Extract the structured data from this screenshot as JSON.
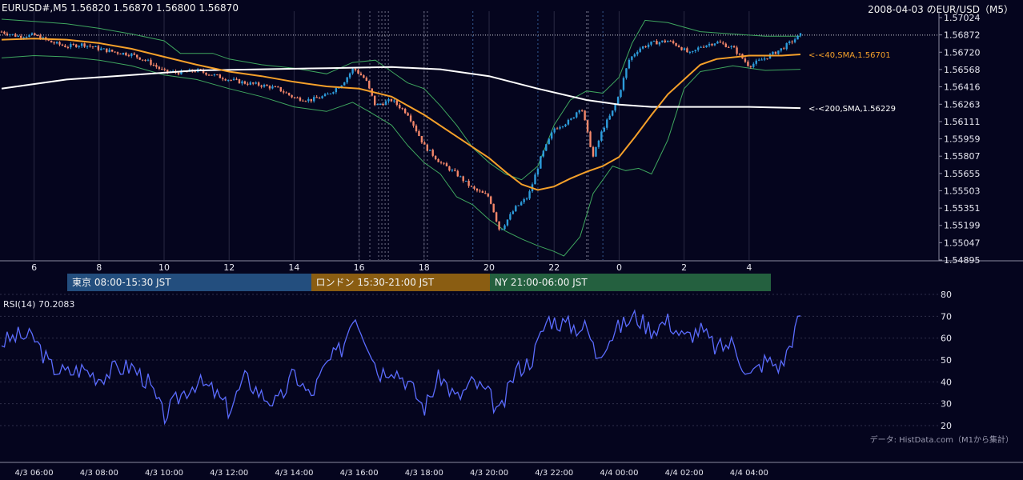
{
  "header": {
    "symbol_ohlc": "EURUSD#,M5 1.56820 1.56870 1.56800 1.56870",
    "title": "2008-04-03 のEUR/USD（M5）"
  },
  "colors": {
    "background": "#05051e",
    "candle_up": "#2d9cdb",
    "candle_down": "#f4876a",
    "sma40": "#f5a02a",
    "sma200": "#ffffff",
    "bollinger": "#3fa65f",
    "rsi_line": "#5b6cff",
    "session_tokyo": "#234e7e",
    "session_london": "#8a5d12",
    "session_ny": "#24603f"
  },
  "chart_data": [
    {
      "type": "candlestick",
      "title": "2008-04-03 のEUR/USD（M5）",
      "instrument": "EURUSD#,M5",
      "ylim": [
        1.54895,
        1.57024
      ],
      "y_ticks": [
        "1.57024",
        "1.56872",
        "1.56720",
        "1.56568",
        "1.56416",
        "1.56263",
        "1.56111",
        "1.55959",
        "1.55807",
        "1.55655",
        "1.55503",
        "1.55351",
        "1.55199",
        "1.55047",
        "1.54895"
      ],
      "x_ticks": [
        "6",
        "8",
        "10",
        "12",
        "14",
        "16",
        "18",
        "20",
        "22",
        "0",
        "2",
        "4"
      ],
      "x_tick_hours": [
        6,
        8,
        10,
        12,
        14,
        16,
        18,
        20,
        22,
        24,
        26,
        28
      ],
      "current_price": 1.5687,
      "indicators": [
        {
          "label": "<-<40,SMA,1.56701",
          "value": 1.56701,
          "color": "#f5a02a"
        },
        {
          "label": "<-<200,SMA,1.56229",
          "value": 1.56229,
          "color": "#ffffff"
        }
      ],
      "close_path": [
        [
          5.0,
          1.569
        ],
        [
          5.5,
          1.5686
        ],
        [
          6.0,
          1.5687
        ],
        [
          6.5,
          1.5681
        ],
        [
          7.0,
          1.5677
        ],
        [
          7.5,
          1.5679
        ],
        [
          8.0,
          1.5675
        ],
        [
          8.5,
          1.5672
        ],
        [
          9.0,
          1.567
        ],
        [
          9.5,
          1.5664
        ],
        [
          10.0,
          1.5655
        ],
        [
          10.5,
          1.5654
        ],
        [
          11.0,
          1.5656
        ],
        [
          11.5,
          1.5652
        ],
        [
          12.0,
          1.5648
        ],
        [
          12.5,
          1.5645
        ],
        [
          13.0,
          1.5643
        ],
        [
          13.5,
          1.564
        ],
        [
          14.0,
          1.5632
        ],
        [
          14.5,
          1.563
        ],
        [
          15.0,
          1.5634
        ],
        [
          15.5,
          1.5645
        ],
        [
          15.83,
          1.5658
        ],
        [
          16.2,
          1.5648
        ],
        [
          16.5,
          1.5625
        ],
        [
          17.0,
          1.563
        ],
        [
          17.5,
          1.5618
        ],
        [
          18.0,
          1.559
        ],
        [
          18.5,
          1.5575
        ],
        [
          19.0,
          1.5565
        ],
        [
          19.5,
          1.5552
        ],
        [
          20.0,
          1.5545
        ],
        [
          20.33,
          1.5515
        ],
        [
          20.8,
          1.5535
        ],
        [
          21.2,
          1.5545
        ],
        [
          21.6,
          1.558
        ],
        [
          22.0,
          1.5605
        ],
        [
          22.5,
          1.5612
        ],
        [
          22.83,
          1.5625
        ],
        [
          23.2,
          1.558
        ],
        [
          23.5,
          1.5605
        ],
        [
          23.8,
          1.562
        ],
        [
          24.0,
          1.5635
        ],
        [
          24.3,
          1.5665
        ],
        [
          24.6,
          1.5675
        ],
        [
          25.0,
          1.568
        ],
        [
          25.5,
          1.5682
        ],
        [
          25.8,
          1.5678
        ],
        [
          26.2,
          1.567
        ],
        [
          26.5,
          1.5677
        ],
        [
          27.0,
          1.5681
        ],
        [
          27.5,
          1.5676
        ],
        [
          28.0,
          1.566
        ],
        [
          28.5,
          1.5667
        ],
        [
          29.0,
          1.5675
        ],
        [
          29.58,
          1.5687
        ]
      ],
      "sma40_path": [
        [
          5.0,
          1.5683
        ],
        [
          6.0,
          1.5684
        ],
        [
          7.0,
          1.5683
        ],
        [
          8.0,
          1.568
        ],
        [
          9.0,
          1.5675
        ],
        [
          10.0,
          1.5668
        ],
        [
          11.0,
          1.5661
        ],
        [
          12.0,
          1.5655
        ],
        [
          13.0,
          1.5651
        ],
        [
          14.0,
          1.5646
        ],
        [
          15.0,
          1.5642
        ],
        [
          16.0,
          1.564
        ],
        [
          17.0,
          1.5633
        ],
        [
          18.0,
          1.5617
        ],
        [
          19.0,
          1.5598
        ],
        [
          20.0,
          1.5579
        ],
        [
          20.5,
          1.5567
        ],
        [
          21.0,
          1.5556
        ],
        [
          21.5,
          1.5551
        ],
        [
          22.0,
          1.5554
        ],
        [
          22.5,
          1.5561
        ],
        [
          23.0,
          1.5567
        ],
        [
          23.5,
          1.5572
        ],
        [
          24.0,
          1.558
        ],
        [
          24.5,
          1.5598
        ],
        [
          25.0,
          1.5617
        ],
        [
          25.5,
          1.5635
        ],
        [
          26.0,
          1.5648
        ],
        [
          26.5,
          1.5661
        ],
        [
          27.0,
          1.5666
        ],
        [
          28.0,
          1.5669
        ],
        [
          29.0,
          1.5669
        ],
        [
          29.58,
          1.56701
        ]
      ],
      "sma200_path": [
        [
          5.0,
          1.564
        ],
        [
          7.0,
          1.5648
        ],
        [
          9.0,
          1.5652
        ],
        [
          11.0,
          1.5656
        ],
        [
          13.0,
          1.5657
        ],
        [
          15.0,
          1.5658
        ],
        [
          17.0,
          1.5659
        ],
        [
          18.5,
          1.5657
        ],
        [
          20.0,
          1.5651
        ],
        [
          21.5,
          1.564
        ],
        [
          23.0,
          1.563
        ],
        [
          24.0,
          1.5626
        ],
        [
          25.0,
          1.5624
        ],
        [
          26.5,
          1.5624
        ],
        [
          28.0,
          1.5624
        ],
        [
          29.58,
          1.56229
        ]
      ],
      "bollinger_upper": [
        [
          5.0,
          1.5701
        ],
        [
          6.0,
          1.5699
        ],
        [
          7.0,
          1.5697
        ],
        [
          8.0,
          1.5693
        ],
        [
          9.0,
          1.5688
        ],
        [
          10.0,
          1.5682
        ],
        [
          10.5,
          1.5671
        ],
        [
          11.5,
          1.5671
        ],
        [
          12.0,
          1.5666
        ],
        [
          13.0,
          1.5661
        ],
        [
          14.0,
          1.5658
        ],
        [
          15.0,
          1.5653
        ],
        [
          15.8,
          1.5663
        ],
        [
          16.5,
          1.5665
        ],
        [
          17.0,
          1.5655
        ],
        [
          17.5,
          1.5645
        ],
        [
          18.0,
          1.564
        ],
        [
          18.5,
          1.5625
        ],
        [
          19.0,
          1.5608
        ],
        [
          19.5,
          1.5588
        ],
        [
          20.0,
          1.5575
        ],
        [
          20.5,
          1.5565
        ],
        [
          21.0,
          1.556
        ],
        [
          21.5,
          1.5572
        ],
        [
          22.0,
          1.5608
        ],
        [
          22.5,
          1.563
        ],
        [
          23.0,
          1.5638
        ],
        [
          23.5,
          1.5636
        ],
        [
          24.0,
          1.565
        ],
        [
          24.4,
          1.568
        ],
        [
          24.8,
          1.57
        ],
        [
          25.5,
          1.5698
        ],
        [
          26.0,
          1.5694
        ],
        [
          26.5,
          1.569
        ],
        [
          27.5,
          1.5688
        ],
        [
          28.5,
          1.5686
        ],
        [
          29.58,
          1.5686
        ]
      ],
      "bollinger_lower": [
        [
          5.0,
          1.5667
        ],
        [
          6.0,
          1.5669
        ],
        [
          7.0,
          1.5668
        ],
        [
          8.0,
          1.5665
        ],
        [
          9.0,
          1.566
        ],
        [
          10.0,
          1.5652
        ],
        [
          11.0,
          1.5648
        ],
        [
          12.0,
          1.564
        ],
        [
          13.0,
          1.5633
        ],
        [
          14.0,
          1.5624
        ],
        [
          15.0,
          1.562
        ],
        [
          15.8,
          1.5628
        ],
        [
          16.3,
          1.562
        ],
        [
          17.0,
          1.5608
        ],
        [
          17.5,
          1.559
        ],
        [
          18.0,
          1.5575
        ],
        [
          18.5,
          1.5565
        ],
        [
          19.0,
          1.5545
        ],
        [
          19.5,
          1.5538
        ],
        [
          20.0,
          1.5525
        ],
        [
          20.5,
          1.5515
        ],
        [
          21.0,
          1.5508
        ],
        [
          21.5,
          1.5502
        ],
        [
          22.0,
          1.5497
        ],
        [
          22.3,
          1.5493
        ],
        [
          22.8,
          1.551
        ],
        [
          23.2,
          1.5548
        ],
        [
          23.8,
          1.5572
        ],
        [
          24.2,
          1.5568
        ],
        [
          24.6,
          1.557
        ],
        [
          25.0,
          1.5565
        ],
        [
          25.5,
          1.5595
        ],
        [
          26.0,
          1.564
        ],
        [
          26.5,
          1.5655
        ],
        [
          27.5,
          1.566
        ],
        [
          28.5,
          1.5656
        ],
        [
          29.58,
          1.5657
        ]
      ]
    },
    {
      "type": "line",
      "title": "RSI(14) 70.2083",
      "ylim": [
        20,
        80
      ],
      "y_ticks": [
        80,
        70,
        60,
        50,
        40,
        30,
        20
      ],
      "x_ticks": [
        "4/3 06:00",
        "4/3 08:00",
        "4/3 10:00",
        "4/3 12:00",
        "4/3 14:00",
        "4/3 16:00",
        "4/3 18:00",
        "4/3 20:00",
        "4/3 22:00",
        "4/4 00:00",
        "4/4 02:00",
        "4/4 04:00"
      ],
      "x_tick_hours": [
        6,
        8,
        10,
        12,
        14,
        16,
        18,
        20,
        22,
        24,
        26,
        28
      ],
      "series": [
        {
          "last_value": 70.2083,
          "points": [
            [
              5.0,
              58
            ],
            [
              5.5,
              61
            ],
            [
              6.0,
              60
            ],
            [
              6.5,
              47
            ],
            [
              7.0,
              44
            ],
            [
              7.5,
              46
            ],
            [
              8.0,
              42
            ],
            [
              8.5,
              46
            ],
            [
              9.0,
              47
            ],
            [
              9.5,
              40
            ],
            [
              10.0,
              24
            ],
            [
              10.5,
              34
            ],
            [
              11.0,
              40
            ],
            [
              11.5,
              36
            ],
            [
              12.0,
              27
            ],
            [
              12.5,
              42
            ],
            [
              13.0,
              34
            ],
            [
              13.5,
              30
            ],
            [
              14.0,
              44
            ],
            [
              14.5,
              33
            ],
            [
              15.0,
              48
            ],
            [
              15.5,
              56
            ],
            [
              15.83,
              72
            ],
            [
              16.3,
              57
            ],
            [
              16.6,
              44
            ],
            [
              17.0,
              47
            ],
            [
              17.5,
              40
            ],
            [
              18.0,
              28
            ],
            [
              18.5,
              43
            ],
            [
              19.0,
              32
            ],
            [
              19.5,
              40
            ],
            [
              20.0,
              34
            ],
            [
              20.33,
              25
            ],
            [
              20.8,
              45
            ],
            [
              21.3,
              50
            ],
            [
              21.8,
              69
            ],
            [
              22.2,
              67
            ],
            [
              22.7,
              65
            ],
            [
              23.0,
              65
            ],
            [
              23.3,
              52
            ],
            [
              23.7,
              60
            ],
            [
              24.0,
              65
            ],
            [
              24.5,
              70
            ],
            [
              25.0,
              64
            ],
            [
              25.5,
              68
            ],
            [
              26.0,
              60
            ],
            [
              26.5,
              64
            ],
            [
              27.0,
              55
            ],
            [
              27.5,
              58
            ],
            [
              28.0,
              42
            ],
            [
              28.5,
              50
            ],
            [
              29.0,
              47
            ],
            [
              29.58,
              70.2
            ]
          ]
        }
      ]
    }
  ],
  "sessions": [
    {
      "label": "東京 08:00-15:30 JST",
      "start_hour": 8.0,
      "end_hour": 15.5,
      "color": "#234e7e"
    },
    {
      "label": "ロンドン 15:30-21:00 JST",
      "start_hour": 15.5,
      "end_hour": 21.0,
      "color": "#8a5d12"
    },
    {
      "label": "NY 21:00-06:00 JST",
      "start_hour": 21.0,
      "end_hour": 30.0,
      "color": "#24603f"
    }
  ],
  "rsi": {
    "label": "RSI(14) 70.2083"
  },
  "footer": {
    "source": "データ: HistData.com（M1から集計）"
  }
}
